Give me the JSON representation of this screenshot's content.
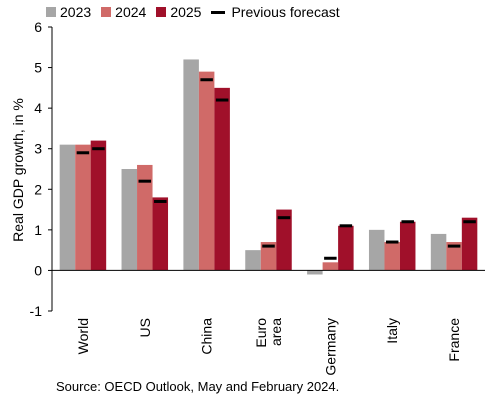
{
  "colors": {
    "2023": "#a6a6a6",
    "2024": "#d06a68",
    "2025": "#a0102a",
    "forecast": "#000000",
    "axis": "#000000"
  },
  "legend": [
    {
      "name": "2023",
      "label": "2023",
      "color": "#a6a6a6"
    },
    {
      "name": "2024",
      "label": "2024",
      "color": "#d06a68"
    },
    {
      "name": "2025",
      "label": "2025",
      "color": "#a0102a"
    }
  ],
  "legend_forecast_label": "Previous forecast",
  "source": "Source: OECD Outlook, May and February 2024.",
  "chart_data": {
    "type": "bar",
    "title": "",
    "xlabel": "",
    "ylabel": "Real GDP growth, in %",
    "ylim": [
      -1,
      6
    ],
    "yticks": [
      -1,
      0,
      1,
      2,
      3,
      4,
      5,
      6
    ],
    "grid": false,
    "legend_position": "top",
    "categories": [
      {
        "id": "world",
        "lines": [
          "World"
        ]
      },
      {
        "id": "us",
        "lines": [
          "US"
        ]
      },
      {
        "id": "china",
        "lines": [
          "China"
        ]
      },
      {
        "id": "euro-area",
        "lines": [
          "Euro",
          "area"
        ]
      },
      {
        "id": "germany",
        "lines": [
          "Germany"
        ]
      },
      {
        "id": "italy",
        "lines": [
          "Italy"
        ]
      },
      {
        "id": "france",
        "lines": [
          "France"
        ]
      }
    ],
    "series": [
      {
        "name": "2023",
        "values": [
          3.1,
          2.5,
          5.2,
          0.5,
          -0.1,
          1.0,
          0.9
        ]
      },
      {
        "name": "2024",
        "values": [
          3.1,
          2.6,
          4.9,
          0.7,
          0.2,
          0.7,
          0.7
        ]
      },
      {
        "name": "2025",
        "values": [
          3.2,
          1.8,
          4.5,
          1.5,
          1.1,
          1.2,
          1.3
        ]
      }
    ],
    "previous_forecast": {
      "name": "Previous forecast",
      "2024": [
        2.9,
        2.2,
        4.7,
        0.6,
        0.3,
        0.7,
        0.6
      ],
      "2025": [
        3.0,
        1.7,
        4.2,
        1.3,
        1.1,
        1.2,
        1.2
      ]
    }
  }
}
